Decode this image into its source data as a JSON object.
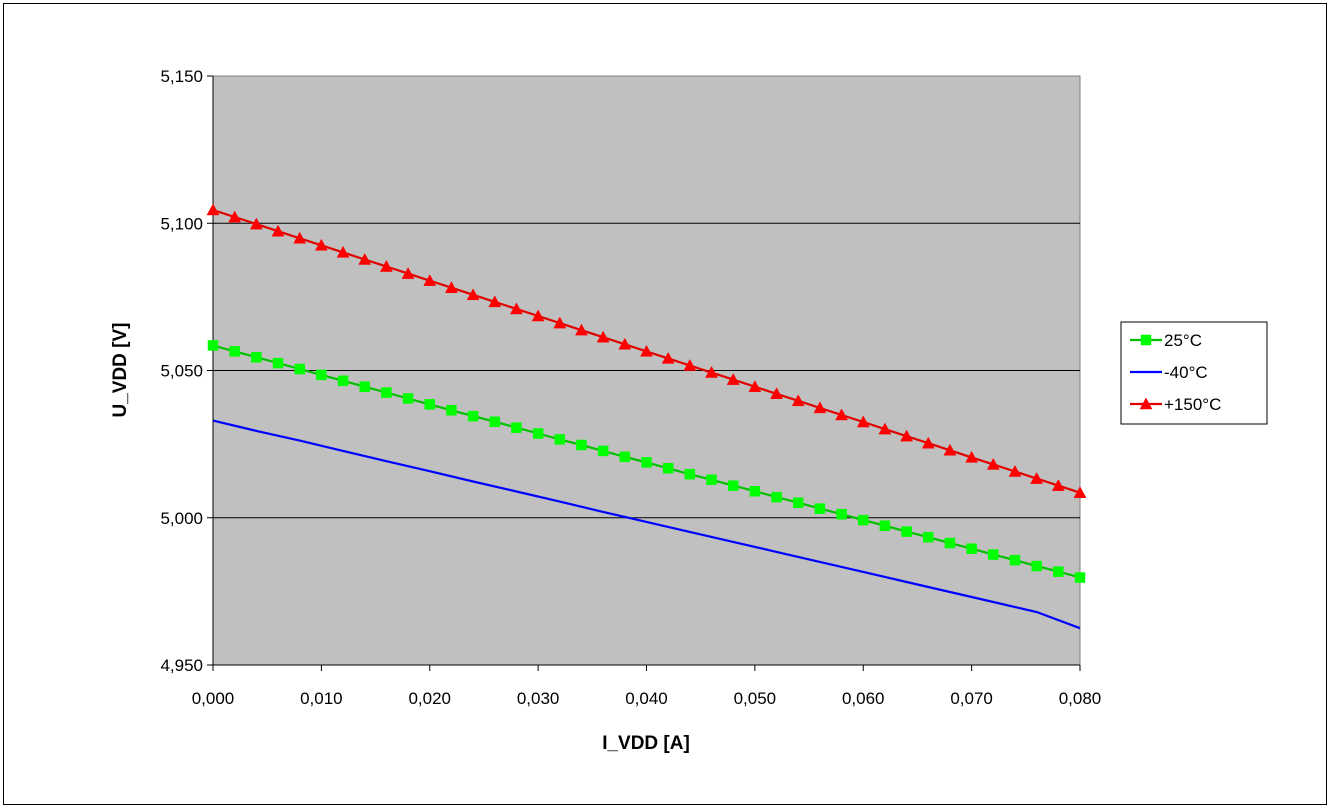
{
  "chart_data": {
    "type": "line",
    "title": "",
    "xlabel": "I_VDD [A]",
    "ylabel": "U_VDD [V]",
    "xlim": [
      0.0,
      0.08
    ],
    "ylim": [
      4.95,
      5.15
    ],
    "x_ticks": [
      "0,000",
      "0,010",
      "0,020",
      "0,030",
      "0,040",
      "0,050",
      "0,060",
      "0,070",
      "0,080"
    ],
    "y_ticks": [
      "4,950",
      "5,000",
      "5,050",
      "5,100",
      "5,150"
    ],
    "grid": "horizontal major gridlines",
    "plot_background": "#c0c0c0",
    "legend_position": "right",
    "series": [
      {
        "name": "25°C",
        "color": "#00ff00",
        "line_color": "#00c000",
        "marker": "square",
        "x": [
          0.0,
          0.002,
          0.004,
          0.006,
          0.008,
          0.01,
          0.012,
          0.014,
          0.016,
          0.018,
          0.02,
          0.022,
          0.024,
          0.026,
          0.028,
          0.03,
          0.032,
          0.034,
          0.036,
          0.038,
          0.04,
          0.042,
          0.044,
          0.046,
          0.048,
          0.05,
          0.052,
          0.054,
          0.056,
          0.058,
          0.06,
          0.062,
          0.064,
          0.066,
          0.068,
          0.07,
          0.072,
          0.074,
          0.076,
          0.078,
          0.08
        ],
        "y": [
          5.0585,
          5.0565,
          5.0545,
          5.0525,
          5.0505,
          5.0485,
          5.0465,
          5.0445,
          5.0425,
          5.0405,
          5.0385,
          5.0365,
          5.0345,
          5.0326,
          5.0306,
          5.0286,
          5.0266,
          5.0247,
          5.0227,
          5.0207,
          5.0188,
          5.0168,
          5.0148,
          5.0129,
          5.0109,
          5.009,
          5.007,
          5.0051,
          5.0031,
          5.0012,
          4.9992,
          4.9973,
          4.9953,
          4.9934,
          4.9914,
          4.9895,
          4.9875,
          4.9856,
          4.9836,
          4.9817,
          4.9797
        ]
      },
      {
        "name": "-40°C",
        "color": "#0000ff",
        "marker": "none",
        "x": [
          0.0,
          0.004,
          0.008,
          0.012,
          0.016,
          0.02,
          0.024,
          0.028,
          0.032,
          0.036,
          0.04,
          0.044,
          0.048,
          0.052,
          0.056,
          0.06,
          0.064,
          0.068,
          0.072,
          0.076,
          0.08
        ],
        "y": [
          5.033,
          5.0295,
          5.0262,
          5.0227,
          5.0192,
          5.0158,
          5.0123,
          5.0089,
          5.0055,
          5.002,
          4.9986,
          4.9952,
          4.9918,
          4.9884,
          4.985,
          4.9816,
          4.9782,
          4.9748,
          4.9714,
          4.968,
          4.9625
        ]
      },
      {
        "name": "+150°C",
        "color": "#ff0000",
        "line_color": "#e00000",
        "marker": "triangle",
        "x": [
          0.0,
          0.002,
          0.004,
          0.006,
          0.008,
          0.01,
          0.012,
          0.014,
          0.016,
          0.018,
          0.02,
          0.022,
          0.024,
          0.026,
          0.028,
          0.03,
          0.032,
          0.034,
          0.036,
          0.038,
          0.04,
          0.042,
          0.044,
          0.046,
          0.048,
          0.05,
          0.052,
          0.054,
          0.056,
          0.058,
          0.06,
          0.062,
          0.064,
          0.066,
          0.068,
          0.07,
          0.072,
          0.074,
          0.076,
          0.078,
          0.08
        ],
        "y": [
          5.1045,
          5.1021,
          5.0997,
          5.0973,
          5.0949,
          5.0925,
          5.0901,
          5.0877,
          5.0853,
          5.0829,
          5.0805,
          5.0781,
          5.0757,
          5.0733,
          5.0709,
          5.0685,
          5.0661,
          5.0637,
          5.0613,
          5.0589,
          5.0565,
          5.0541,
          5.0517,
          5.0493,
          5.0469,
          5.0445,
          5.0421,
          5.0397,
          5.0373,
          5.0349,
          5.0325,
          5.0301,
          5.0277,
          5.0253,
          5.0229,
          5.0205,
          5.0181,
          5.0157,
          5.0133,
          5.0109,
          5.0085
        ]
      }
    ]
  }
}
